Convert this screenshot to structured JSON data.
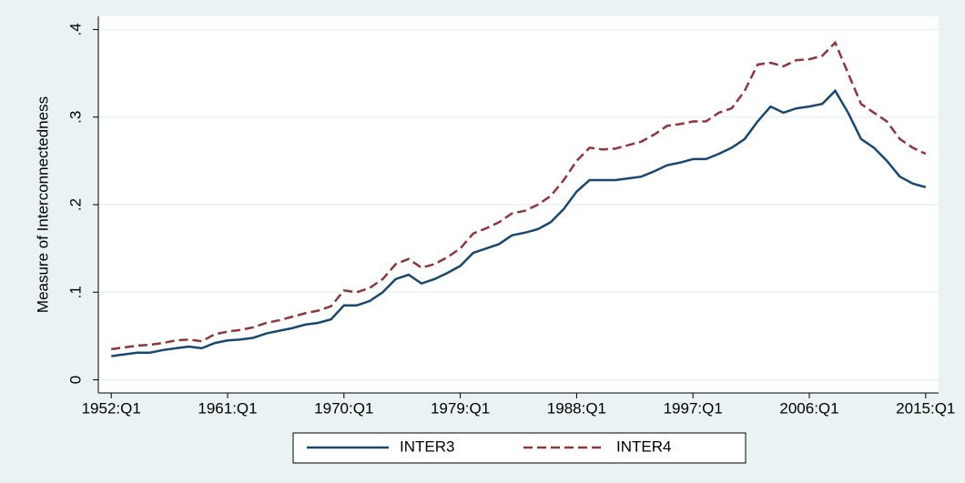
{
  "chart_data": {
    "type": "line",
    "y_label": "Measure of Interconnectedness",
    "x": [
      1952,
      1953,
      1954,
      1955,
      1956,
      1957,
      1958,
      1959,
      1960,
      1961,
      1962,
      1963,
      1964,
      1965,
      1966,
      1967,
      1968,
      1969,
      1970,
      1971,
      1972,
      1973,
      1974,
      1975,
      1976,
      1977,
      1978,
      1979,
      1980,
      1981,
      1982,
      1983,
      1984,
      1985,
      1986,
      1987,
      1988,
      1989,
      1990,
      1991,
      1992,
      1993,
      1994,
      1995,
      1996,
      1997,
      1998,
      1999,
      2000,
      2001,
      2002,
      2003,
      2004,
      2005,
      2006,
      2007,
      2008,
      2009,
      2010,
      2011,
      2012,
      2013,
      2014,
      2015
    ],
    "series": [
      {
        "name": "INTER3",
        "color": "#1a476f",
        "dash": false,
        "values": [
          0.027,
          0.029,
          0.031,
          0.031,
          0.034,
          0.036,
          0.038,
          0.036,
          0.042,
          0.045,
          0.046,
          0.048,
          0.053,
          0.056,
          0.059,
          0.063,
          0.065,
          0.069,
          0.085,
          0.085,
          0.09,
          0.1,
          0.115,
          0.12,
          0.11,
          0.115,
          0.122,
          0.13,
          0.145,
          0.15,
          0.155,
          0.165,
          0.168,
          0.172,
          0.18,
          0.195,
          0.215,
          0.228,
          0.228,
          0.228,
          0.23,
          0.232,
          0.238,
          0.245,
          0.248,
          0.252,
          0.252,
          0.258,
          0.265,
          0.275,
          0.295,
          0.312,
          0.305,
          0.31,
          0.312,
          0.315,
          0.33,
          0.305,
          0.275,
          0.265,
          0.25,
          0.232,
          0.224,
          0.22
        ]
      },
      {
        "name": "INTER4",
        "color": "#90353b",
        "dash": true,
        "values": [
          0.035,
          0.037,
          0.039,
          0.04,
          0.042,
          0.045,
          0.046,
          0.044,
          0.052,
          0.055,
          0.057,
          0.06,
          0.065,
          0.068,
          0.072,
          0.076,
          0.079,
          0.084,
          0.102,
          0.1,
          0.105,
          0.115,
          0.132,
          0.138,
          0.128,
          0.132,
          0.14,
          0.15,
          0.167,
          0.173,
          0.18,
          0.19,
          0.193,
          0.2,
          0.21,
          0.228,
          0.25,
          0.265,
          0.263,
          0.264,
          0.268,
          0.272,
          0.28,
          0.29,
          0.292,
          0.295,
          0.295,
          0.305,
          0.31,
          0.33,
          0.36,
          0.362,
          0.358,
          0.365,
          0.366,
          0.37,
          0.385,
          0.35,
          0.315,
          0.305,
          0.295,
          0.275,
          0.265,
          0.258
        ]
      }
    ],
    "xlim": [
      1951,
      2016
    ],
    "xticks": [
      {
        "value": 1952,
        "label": "1952:Q1"
      },
      {
        "value": 1961,
        "label": "1961:Q1"
      },
      {
        "value": 1970,
        "label": "1970:Q1"
      },
      {
        "value": 1979,
        "label": "1979:Q1"
      },
      {
        "value": 1988,
        "label": "1988:Q1"
      },
      {
        "value": 1997,
        "label": "1997:Q1"
      },
      {
        "value": 2006,
        "label": "2006:Q1"
      },
      {
        "value": 2015,
        "label": "2015:Q1"
      }
    ],
    "ylim": [
      -0.015,
      0.415
    ],
    "yticks": [
      0,
      {
        "value": 0.1,
        "label": ".1"
      },
      {
        "value": 0.2,
        "label": ".2"
      },
      {
        "value": 0.3,
        "label": ".3"
      },
      {
        "value": 0.4,
        "label": ".4"
      }
    ],
    "grid": true,
    "legend": "bottom"
  }
}
